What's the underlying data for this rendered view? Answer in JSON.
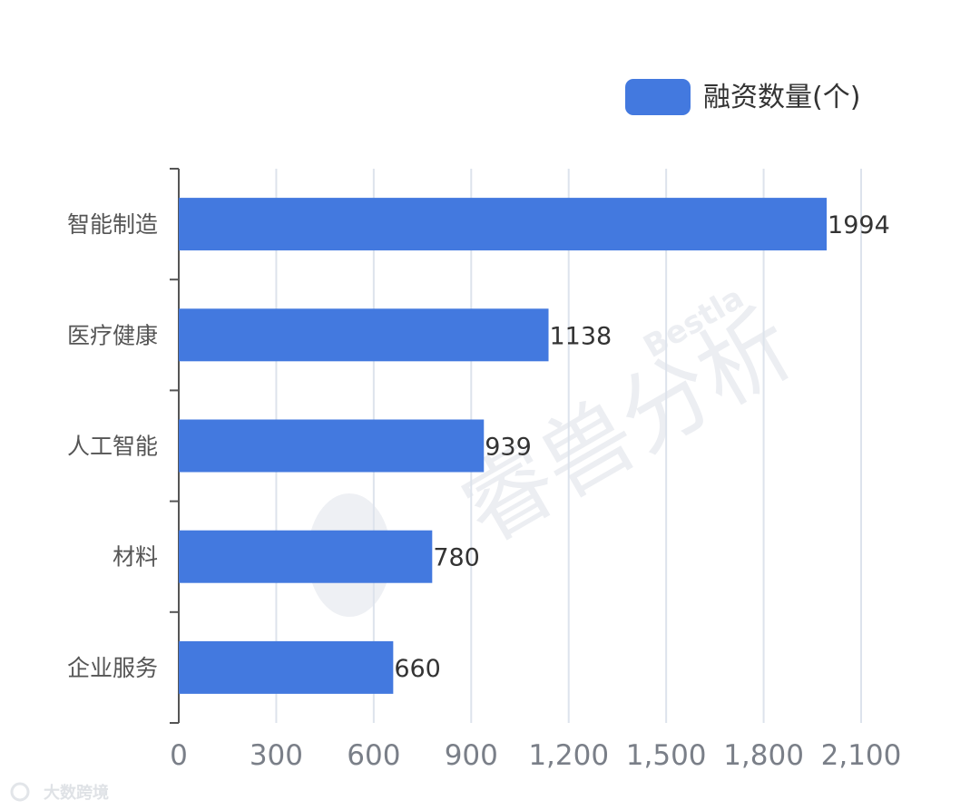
{
  "watermark": {
    "main": "睿兽分析",
    "sub": "Bestla",
    "footer": "大数跨境"
  },
  "colors": {
    "bar": "#4379df",
    "grid": "#dde3ec",
    "axis": "#555555"
  },
  "chart_data": {
    "type": "bar",
    "orientation": "horizontal",
    "categories": [
      "智能制造",
      "医疗健康",
      "人工智能",
      "材料",
      "企业服务"
    ],
    "series": [
      {
        "name": "融资数量(个)",
        "values": [
          1994,
          1138,
          939,
          780,
          660
        ]
      }
    ],
    "xlim": [
      0,
      2100
    ],
    "x_ticks": [
      "0",
      "300",
      "600",
      "900",
      "1,200",
      "1,500",
      "1,800",
      "2,100"
    ],
    "grid": true,
    "legend_position": "top-right",
    "data_labels": true
  }
}
